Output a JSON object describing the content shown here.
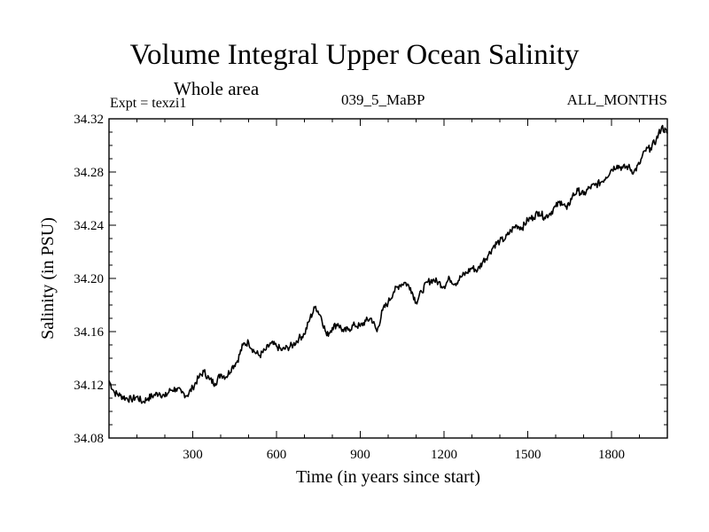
{
  "header": {
    "title": "Volume Integral Upper Ocean Salinity",
    "subtitle": "Whole area",
    "expt": "Expt = texzi1",
    "run_id": "039_5_MaBP",
    "months": "ALL_MONTHS"
  },
  "chart_data": {
    "type": "line",
    "title": "Volume Integral Upper Ocean Salinity",
    "xlabel": "Time (in years since start)",
    "ylabel": "Salinity (in PSU)",
    "xlim": [
      0,
      2000
    ],
    "ylim": [
      34.08,
      34.32
    ],
    "xticks": [
      300,
      600,
      900,
      1200,
      1500,
      1800
    ],
    "xtick_labels": [
      "300",
      "600",
      "900",
      "1200",
      "1500",
      "1800"
    ],
    "yticks": [
      34.08,
      34.12,
      34.16,
      34.2,
      34.24,
      34.28,
      34.32
    ],
    "ytick_labels": [
      "34.08",
      "34.12",
      "34.16",
      "34.20",
      "34.24",
      "34.28",
      "34.32"
    ],
    "line_color": "#000000",
    "series": [
      {
        "name": "salinity",
        "x": [
          0,
          20,
          40,
          60,
          80,
          100,
          120,
          140,
          160,
          180,
          200,
          220,
          240,
          260,
          280,
          300,
          320,
          340,
          360,
          380,
          400,
          420,
          440,
          460,
          480,
          500,
          520,
          540,
          560,
          580,
          600,
          620,
          640,
          660,
          680,
          700,
          720,
          740,
          760,
          780,
          800,
          820,
          840,
          860,
          880,
          900,
          920,
          940,
          960,
          980,
          1000,
          1020,
          1040,
          1060,
          1080,
          1100,
          1120,
          1140,
          1160,
          1180,
          1200,
          1220,
          1240,
          1260,
          1280,
          1300,
          1320,
          1340,
          1360,
          1380,
          1400,
          1420,
          1440,
          1460,
          1480,
          1500,
          1520,
          1540,
          1560,
          1580,
          1600,
          1620,
          1640,
          1660,
          1680,
          1700,
          1720,
          1740,
          1760,
          1780,
          1800,
          1820,
          1840,
          1860,
          1880,
          1900,
          1920,
          1940,
          1960,
          1980,
          2000
        ],
        "values": [
          34.123,
          34.114,
          34.112,
          34.11,
          34.109,
          34.111,
          34.107,
          34.11,
          34.112,
          34.114,
          34.111,
          34.116,
          34.117,
          34.114,
          34.112,
          34.118,
          34.125,
          34.13,
          34.124,
          34.121,
          34.128,
          34.126,
          34.133,
          34.138,
          34.15,
          34.152,
          34.145,
          34.142,
          34.146,
          34.151,
          34.149,
          34.146,
          34.148,
          34.15,
          34.155,
          34.158,
          34.17,
          34.179,
          34.171,
          34.157,
          34.163,
          34.166,
          34.16,
          34.162,
          34.165,
          34.164,
          34.168,
          34.17,
          34.16,
          34.176,
          34.182,
          34.19,
          34.195,
          34.197,
          34.193,
          34.182,
          34.19,
          34.197,
          34.199,
          34.197,
          34.194,
          34.2,
          34.196,
          34.201,
          34.204,
          34.208,
          34.206,
          34.213,
          34.218,
          34.225,
          34.228,
          34.23,
          34.236,
          34.24,
          34.238,
          34.244,
          34.246,
          34.25,
          34.246,
          34.249,
          34.254,
          34.258,
          34.252,
          34.262,
          34.266,
          34.263,
          34.268,
          34.27,
          34.272,
          34.276,
          34.282,
          34.285,
          34.283,
          34.284,
          34.28,
          34.286,
          34.296,
          34.298,
          34.304,
          34.314,
          34.309
        ]
      }
    ]
  }
}
